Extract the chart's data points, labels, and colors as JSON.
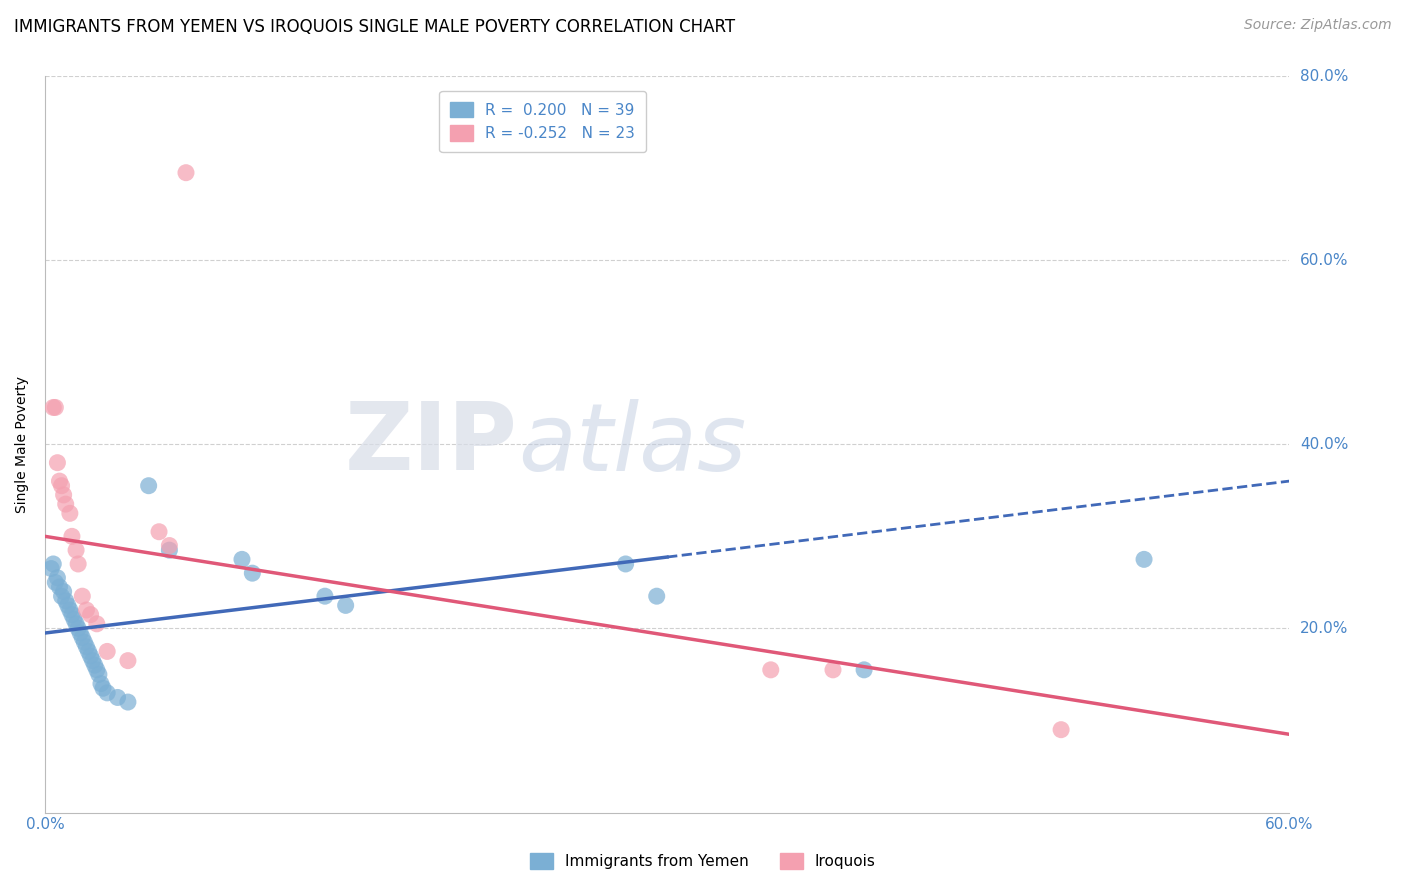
{
  "title": "IMMIGRANTS FROM YEMEN VS IROQUOIS SINGLE MALE POVERTY CORRELATION CHART",
  "source": "Source: ZipAtlas.com",
  "ylabel": "Single Male Poverty",
  "xlim": [
    0.0,
    0.6
  ],
  "ylim": [
    0.0,
    0.8
  ],
  "blue_color": "#7bafd4",
  "pink_color": "#f4a0b0",
  "blue_line_color": "#4169b8",
  "pink_line_color": "#e05878",
  "grid_color": "#d0d0d0",
  "blue_dots": [
    [
      0.003,
      0.265
    ],
    [
      0.004,
      0.27
    ],
    [
      0.005,
      0.25
    ],
    [
      0.006,
      0.255
    ],
    [
      0.007,
      0.245
    ],
    [
      0.008,
      0.235
    ],
    [
      0.009,
      0.24
    ],
    [
      0.01,
      0.23
    ],
    [
      0.011,
      0.225
    ],
    [
      0.012,
      0.22
    ],
    [
      0.013,
      0.215
    ],
    [
      0.014,
      0.21
    ],
    [
      0.015,
      0.205
    ],
    [
      0.016,
      0.2
    ],
    [
      0.017,
      0.195
    ],
    [
      0.018,
      0.19
    ],
    [
      0.019,
      0.185
    ],
    [
      0.02,
      0.18
    ],
    [
      0.021,
      0.175
    ],
    [
      0.022,
      0.17
    ],
    [
      0.023,
      0.165
    ],
    [
      0.024,
      0.16
    ],
    [
      0.025,
      0.155
    ],
    [
      0.026,
      0.15
    ],
    [
      0.027,
      0.14
    ],
    [
      0.028,
      0.135
    ],
    [
      0.03,
      0.13
    ],
    [
      0.035,
      0.125
    ],
    [
      0.04,
      0.12
    ],
    [
      0.05,
      0.355
    ],
    [
      0.06,
      0.285
    ],
    [
      0.095,
      0.275
    ],
    [
      0.1,
      0.26
    ],
    [
      0.135,
      0.235
    ],
    [
      0.145,
      0.225
    ],
    [
      0.28,
      0.27
    ],
    [
      0.295,
      0.235
    ],
    [
      0.395,
      0.155
    ],
    [
      0.53,
      0.275
    ]
  ],
  "pink_dots": [
    [
      0.004,
      0.44
    ],
    [
      0.005,
      0.44
    ],
    [
      0.006,
      0.38
    ],
    [
      0.007,
      0.36
    ],
    [
      0.008,
      0.355
    ],
    [
      0.009,
      0.345
    ],
    [
      0.01,
      0.335
    ],
    [
      0.012,
      0.325
    ],
    [
      0.013,
      0.3
    ],
    [
      0.015,
      0.285
    ],
    [
      0.016,
      0.27
    ],
    [
      0.018,
      0.235
    ],
    [
      0.02,
      0.22
    ],
    [
      0.022,
      0.215
    ],
    [
      0.025,
      0.205
    ],
    [
      0.03,
      0.175
    ],
    [
      0.04,
      0.165
    ],
    [
      0.055,
      0.305
    ],
    [
      0.06,
      0.29
    ],
    [
      0.068,
      0.695
    ],
    [
      0.35,
      0.155
    ],
    [
      0.38,
      0.155
    ],
    [
      0.49,
      0.09
    ]
  ],
  "title_fontsize": 12,
  "source_fontsize": 10,
  "axis_label_fontsize": 10,
  "tick_fontsize": 11,
  "legend_fontsize": 11,
  "tick_color": "#4a86c8",
  "legend_label_color": "#4a86c8"
}
